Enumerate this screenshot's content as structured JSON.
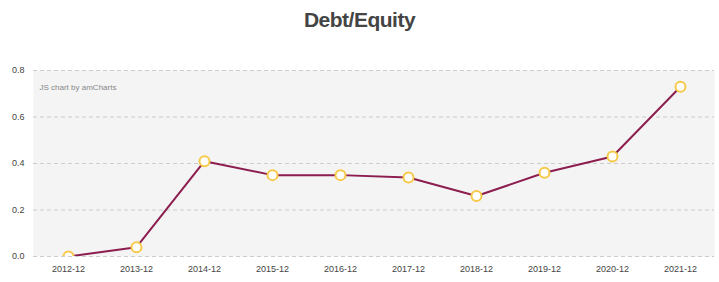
{
  "chart_data": {
    "type": "line",
    "title": "Debt/Equity",
    "annotation": "JS chart by amCharts",
    "categories": [
      "2012-12",
      "2013-12",
      "2014-12",
      "2015-12",
      "2016-12",
      "2017-12",
      "2018-12",
      "2019-12",
      "2020-12",
      "2021-12"
    ],
    "values": [
      0.0,
      0.04,
      0.41,
      0.35,
      0.35,
      0.34,
      0.26,
      0.36,
      0.43,
      0.73
    ],
    "color": "#8c1d4f",
    "marker": "circle",
    "ylim": [
      0,
      0.8
    ],
    "yticks": [
      {
        "value": 0,
        "label": "0.0"
      },
      0.2,
      0.4,
      0.6,
      0.8
    ],
    "grid": true
  }
}
